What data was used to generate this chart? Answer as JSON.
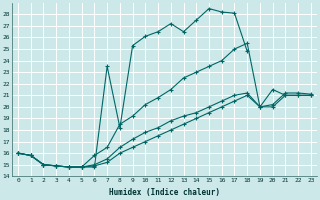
{
  "xlabel": "Humidex (Indice chaleur)",
  "background_color": "#cce8e8",
  "grid_color": "#b8d8d8",
  "line_color": "#006666",
  "xlim": [
    -0.5,
    23.5
  ],
  "ylim": [
    14,
    29
  ],
  "xticks": [
    0,
    1,
    2,
    3,
    4,
    5,
    6,
    7,
    8,
    9,
    10,
    11,
    12,
    13,
    14,
    15,
    16,
    17,
    18,
    19,
    20,
    21,
    22,
    23
  ],
  "yticks": [
    14,
    15,
    16,
    17,
    18,
    19,
    20,
    21,
    22,
    23,
    24,
    25,
    26,
    27,
    28
  ],
  "series": [
    {
      "x": [
        0,
        1,
        2,
        3,
        4,
        5,
        6,
        7,
        8,
        9,
        10,
        11,
        12,
        13,
        14,
        15,
        16,
        17,
        18
      ],
      "y": [
        16,
        15.8,
        15.0,
        14.9,
        14.8,
        14.8,
        14.8,
        23.5,
        18.2,
        25.3,
        26.1,
        26.5,
        27.2,
        26.5,
        27.5,
        28.5,
        28.2,
        28.1,
        24.8
      ]
    },
    {
      "x": [
        0,
        1,
        2,
        3,
        4,
        5,
        6,
        7,
        8,
        9,
        10,
        11,
        12,
        13,
        14,
        15,
        16,
        17,
        18,
        19,
        20,
        21,
        22,
        23
      ],
      "y": [
        16,
        15.8,
        15.0,
        14.9,
        14.8,
        14.8,
        15.8,
        16.5,
        18.5,
        19.2,
        20.2,
        20.8,
        21.5,
        22.5,
        23.0,
        23.5,
        24.0,
        25.0,
        25.5,
        20.0,
        21.5,
        21.0,
        21.0,
        21.0
      ]
    },
    {
      "x": [
        0,
        1,
        2,
        3,
        4,
        5,
        6,
        7,
        8,
        9,
        10,
        11,
        12,
        13,
        14,
        15,
        16,
        17,
        18,
        19,
        20,
        21,
        22,
        23
      ],
      "y": [
        16,
        15.8,
        15.0,
        14.9,
        14.8,
        14.8,
        15.0,
        15.5,
        16.5,
        17.2,
        17.8,
        18.2,
        18.8,
        19.2,
        19.5,
        20.0,
        20.5,
        21.0,
        21.2,
        20.0,
        20.2,
        21.2,
        21.2,
        21.1
      ]
    },
    {
      "x": [
        0,
        1,
        2,
        3,
        4,
        5,
        6,
        7,
        8,
        9,
        10,
        11,
        12,
        13,
        14,
        15,
        16,
        17,
        18,
        19,
        20,
        21,
        22,
        23
      ],
      "y": [
        16,
        15.8,
        15.0,
        14.9,
        14.8,
        14.8,
        14.9,
        15.2,
        16.0,
        16.5,
        17.0,
        17.5,
        18.0,
        18.5,
        19.0,
        19.5,
        20.0,
        20.5,
        21.0,
        20.0,
        20.0,
        21.0,
        21.0,
        21.0
      ]
    }
  ]
}
